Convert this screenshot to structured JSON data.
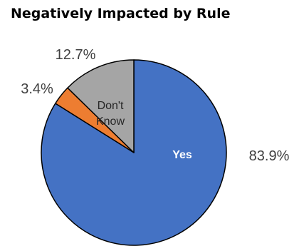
{
  "chart_data": {
    "type": "pie",
    "title": "Negatively Impacted by Rule",
    "slices": [
      {
        "label": "Yes",
        "value": 83.9,
        "value_label": "83.9%",
        "color": "#4472C4",
        "label_color": "#FFFFFF",
        "label_bold": true
      },
      {
        "label": "",
        "value": 3.4,
        "value_label": "3.4%",
        "color": "#ED7D31"
      },
      {
        "label_lines": [
          "Don't",
          "Know"
        ],
        "value": 12.7,
        "value_label": "12.7%",
        "color": "#A5A5A5",
        "label_color": "#262626"
      }
    ],
    "start_angle": "12 o'clock",
    "direction": "clockwise",
    "legend": "none"
  }
}
